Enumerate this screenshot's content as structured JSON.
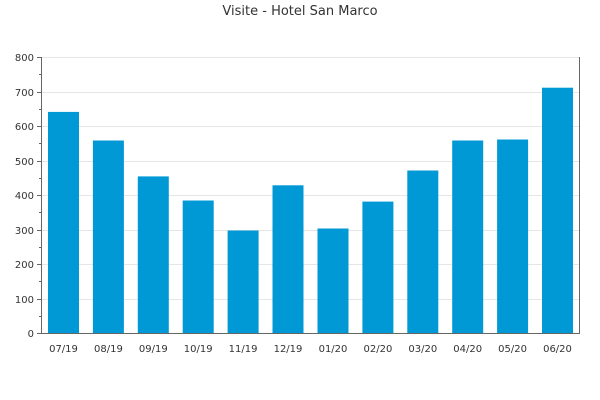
{
  "chart_data": {
    "type": "bar",
    "title": "Visite - Hotel San Marco",
    "xlabel": "",
    "ylabel": "",
    "categories": [
      "07/19",
      "08/19",
      "09/19",
      "10/19",
      "11/19",
      "12/19",
      "01/20",
      "02/20",
      "03/20",
      "04/20",
      "05/20",
      "06/20"
    ],
    "values": [
      641,
      558,
      454,
      384,
      297,
      428,
      303,
      381,
      471,
      558,
      561,
      711
    ],
    "ylim": [
      0,
      800
    ],
    "yticks": [
      0,
      100,
      200,
      300,
      400,
      500,
      600,
      700,
      800
    ],
    "grid": true,
    "legend": "none",
    "bar_color": "#0099d6",
    "axis_color": "#666666",
    "grid_color": "#e6e6e6"
  }
}
